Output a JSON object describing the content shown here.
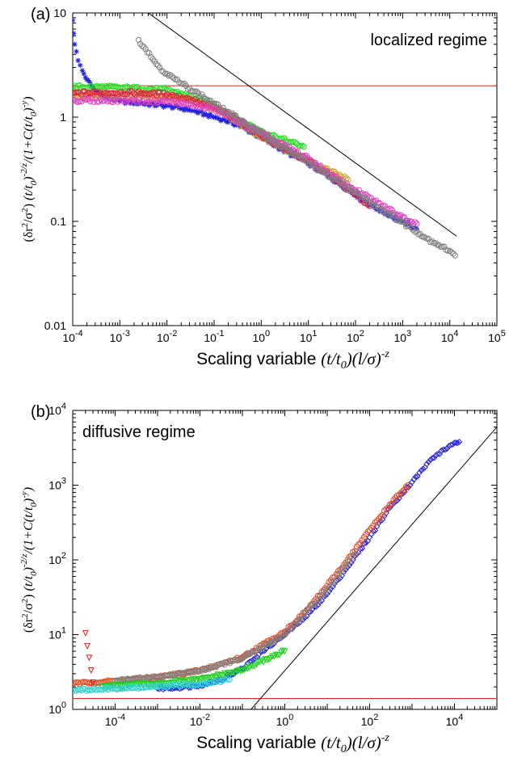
{
  "chart_data": [
    {
      "type": "scatter",
      "panel_label": "(a)",
      "annotation": "localized regime",
      "xlabel_plain": "Scaling variable ",
      "xlabel_math": "(t/t0)(l/σ)^-z",
      "ylabel": "(δr²/σ²) (t/t0)^-2/z / (1+C(t/t0)^-y)",
      "xscale": "log",
      "yscale": "log",
      "xlim": [
        0.0001,
        100000
      ],
      "ylim": [
        0.01,
        10
      ],
      "xticks": [
        {
          "v": 0.0001,
          "m": "10",
          "e": "-4"
        },
        {
          "v": 0.001,
          "m": "10",
          "e": "-3"
        },
        {
          "v": 0.01,
          "m": "10",
          "e": "-2"
        },
        {
          "v": 0.1,
          "m": "10",
          "e": "-1"
        },
        {
          "v": 1,
          "m": "10",
          "e": "0"
        },
        {
          "v": 10,
          "m": "10",
          "e": "1"
        },
        {
          "v": 100,
          "m": "10",
          "e": "2"
        },
        {
          "v": 1000,
          "m": "10",
          "e": "3"
        },
        {
          "v": 10000,
          "m": "10",
          "e": "4"
        },
        {
          "v": 100000,
          "m": "10",
          "e": "5"
        }
      ],
      "yticks": [
        {
          "v": 0.01,
          "label": "0.01"
        },
        {
          "v": 0.1,
          "label": "0.1"
        },
        {
          "v": 1,
          "label": "1"
        },
        {
          "v": 10,
          "label": "10"
        }
      ],
      "lines": [
        {
          "color": "#e8231e",
          "x": [
            0.0001,
            100000
          ],
          "y": [
            2.0,
            2.0
          ]
        },
        {
          "color": "#000000",
          "x": [
            0.004,
            14000
          ],
          "y": [
            10,
            0.072
          ]
        }
      ],
      "series": [
        {
          "color": "#2020e0",
          "marker": "star",
          "x": [
            0.0001,
            0.00011,
            0.00013,
            0.00016,
            0.0002,
            0.00025,
            0.0003,
            0.0005,
            0.001,
            0.003,
            0.01,
            0.03,
            0.07,
            0.15,
            0.3,
            0.6,
            1,
            2,
            5,
            10,
            30,
            100,
            300,
            1000,
            2000
          ],
          "y": [
            8.5,
            5.0,
            3.5,
            2.8,
            2.3,
            2.0,
            1.8,
            1.55,
            1.42,
            1.35,
            1.28,
            1.18,
            1.05,
            0.95,
            0.85,
            0.72,
            0.63,
            0.53,
            0.42,
            0.36,
            0.26,
            0.18,
            0.13,
            0.1,
            0.085
          ]
        },
        {
          "color": "#22e020",
          "marker": "circle",
          "x": [
            0.0001,
            0.0003,
            0.001,
            0.003,
            0.01,
            0.03,
            0.06,
            0.1,
            0.2,
            0.4,
            0.7,
            1,
            2,
            4,
            8
          ],
          "y": [
            1.95,
            1.95,
            1.92,
            1.88,
            1.82,
            1.6,
            1.42,
            1.3,
            1.08,
            0.9,
            0.8,
            0.74,
            0.65,
            0.58,
            0.52
          ]
        },
        {
          "color": "#d0a020",
          "marker": "circle",
          "x": [
            0.0001,
            0.0003,
            0.001,
            0.003,
            0.01,
            0.03,
            0.1,
            0.3,
            1,
            3,
            10,
            30,
            70
          ],
          "y": [
            1.6,
            1.6,
            1.6,
            1.58,
            1.55,
            1.45,
            1.2,
            0.9,
            0.65,
            0.5,
            0.38,
            0.3,
            0.25
          ]
        },
        {
          "color": "#e02040",
          "marker": "circle",
          "x": [
            0.0001,
            0.0003,
            0.001,
            0.003,
            0.01,
            0.03,
            0.1,
            0.3,
            1,
            3,
            10,
            30,
            100,
            200
          ],
          "y": [
            1.7,
            1.72,
            1.72,
            1.7,
            1.65,
            1.5,
            1.25,
            0.95,
            0.68,
            0.5,
            0.38,
            0.27,
            0.18,
            0.14
          ]
        },
        {
          "color": "#e040c0",
          "marker": "circle",
          "x": [
            0.0001,
            0.001,
            0.01,
            0.1,
            1,
            10,
            30,
            100,
            300,
            1000,
            2000
          ],
          "y": [
            1.45,
            1.45,
            1.42,
            1.2,
            0.7,
            0.4,
            0.28,
            0.2,
            0.15,
            0.11,
            0.095
          ]
        },
        {
          "color": "#808080",
          "marker": "circle",
          "x": [
            0.0025,
            0.0035,
            0.005,
            0.007,
            0.01,
            0.015,
            0.02,
            0.03,
            2000,
            3000,
            5000,
            7000,
            10000,
            13000
          ],
          "y": [
            5.5,
            4.5,
            3.6,
            3.0,
            2.6,
            2.3,
            2.1,
            1.9,
            0.08,
            0.07,
            0.062,
            0.057,
            0.052,
            0.047
          ]
        }
      ]
    },
    {
      "type": "scatter",
      "panel_label": "(b)",
      "annotation": "diffusive regime",
      "xlabel_plain": "Scaling variable ",
      "xlabel_math": "(t/t0)(l/σ)^-z",
      "ylabel": "(δr²/σ²) (t/t0)^-2/z / (1+C(t/t0)^-y)",
      "xscale": "log",
      "yscale": "log",
      "xlim": [
        1e-05,
        100000
      ],
      "ylim": [
        1,
        10000
      ],
      "xticks": [
        {
          "v": 0.0001,
          "m": "10",
          "e": "-4"
        },
        {
          "v": 0.01,
          "m": "10",
          "e": "-2"
        },
        {
          "v": 1,
          "m": "10",
          "e": "0"
        },
        {
          "v": 100,
          "m": "10",
          "e": "2"
        },
        {
          "v": 10000,
          "m": "10",
          "e": "4"
        }
      ],
      "yticks": [
        {
          "v": 1,
          "m": "10",
          "e": "0"
        },
        {
          "v": 10,
          "m": "10",
          "e": "1"
        },
        {
          "v": 100,
          "m": "10",
          "e": "2"
        },
        {
          "v": 1000,
          "m": "10",
          "e": "3"
        },
        {
          "v": 10000,
          "m": "10",
          "e": "4"
        }
      ],
      "lines": [
        {
          "color": "#e8231e",
          "x": [
            1e-05,
            100000
          ],
          "y": [
            1.4,
            1.4
          ]
        },
        {
          "color": "#000000",
          "x": [
            0.16,
            100000
          ],
          "y": [
            1,
            6000
          ]
        }
      ],
      "series": [
        {
          "color": "#2020e0",
          "marker": "diamond",
          "x": [
            0.001,
            0.003,
            0.01,
            0.03,
            0.1,
            0.3,
            1,
            3,
            10,
            30,
            100,
            300,
            1000,
            3000,
            10000,
            13000
          ],
          "y": [
            1.9,
            1.95,
            2.1,
            2.5,
            3.5,
            6,
            10,
            17,
            35,
            80,
            200,
            500,
            1100,
            2300,
            3700,
            3800
          ]
        },
        {
          "color": "#e84820",
          "marker": "circle",
          "x": [
            1e-05,
            0.0001,
            0.001,
            0.01,
            0.1,
            1,
            3,
            10,
            30,
            100,
            300,
            800
          ],
          "y": [
            2.2,
            2.4,
            2.7,
            3.3,
            5,
            11,
            20,
            45,
            100,
            250,
            550,
            1000
          ]
        },
        {
          "color": "#808080",
          "marker": "circle",
          "x": [
            0.0001,
            0.001,
            0.01,
            0.1,
            1,
            10,
            50
          ],
          "y": [
            2.4,
            2.7,
            3.3,
            4.8,
            10,
            40,
            130
          ]
        },
        {
          "color": "#22d020",
          "marker": "triangle",
          "x": [
            5e-05,
            0.0002,
            0.001,
            0.01,
            0.1,
            1
          ],
          "y": [
            2.0,
            2.1,
            2.2,
            2.5,
            3.3,
            6
          ]
        },
        {
          "color": "#30d0d0",
          "marker": "circle",
          "x": [
            1e-05,
            0.0001,
            0.001,
            0.01,
            0.05
          ],
          "y": [
            1.8,
            1.9,
            2.0,
            2.2,
            2.5
          ]
        },
        {
          "color": "#e82020",
          "marker": "triangle",
          "x": [
            2e-05,
            3e-05
          ],
          "y": [
            10.5,
            2.3
          ]
        }
      ]
    }
  ]
}
